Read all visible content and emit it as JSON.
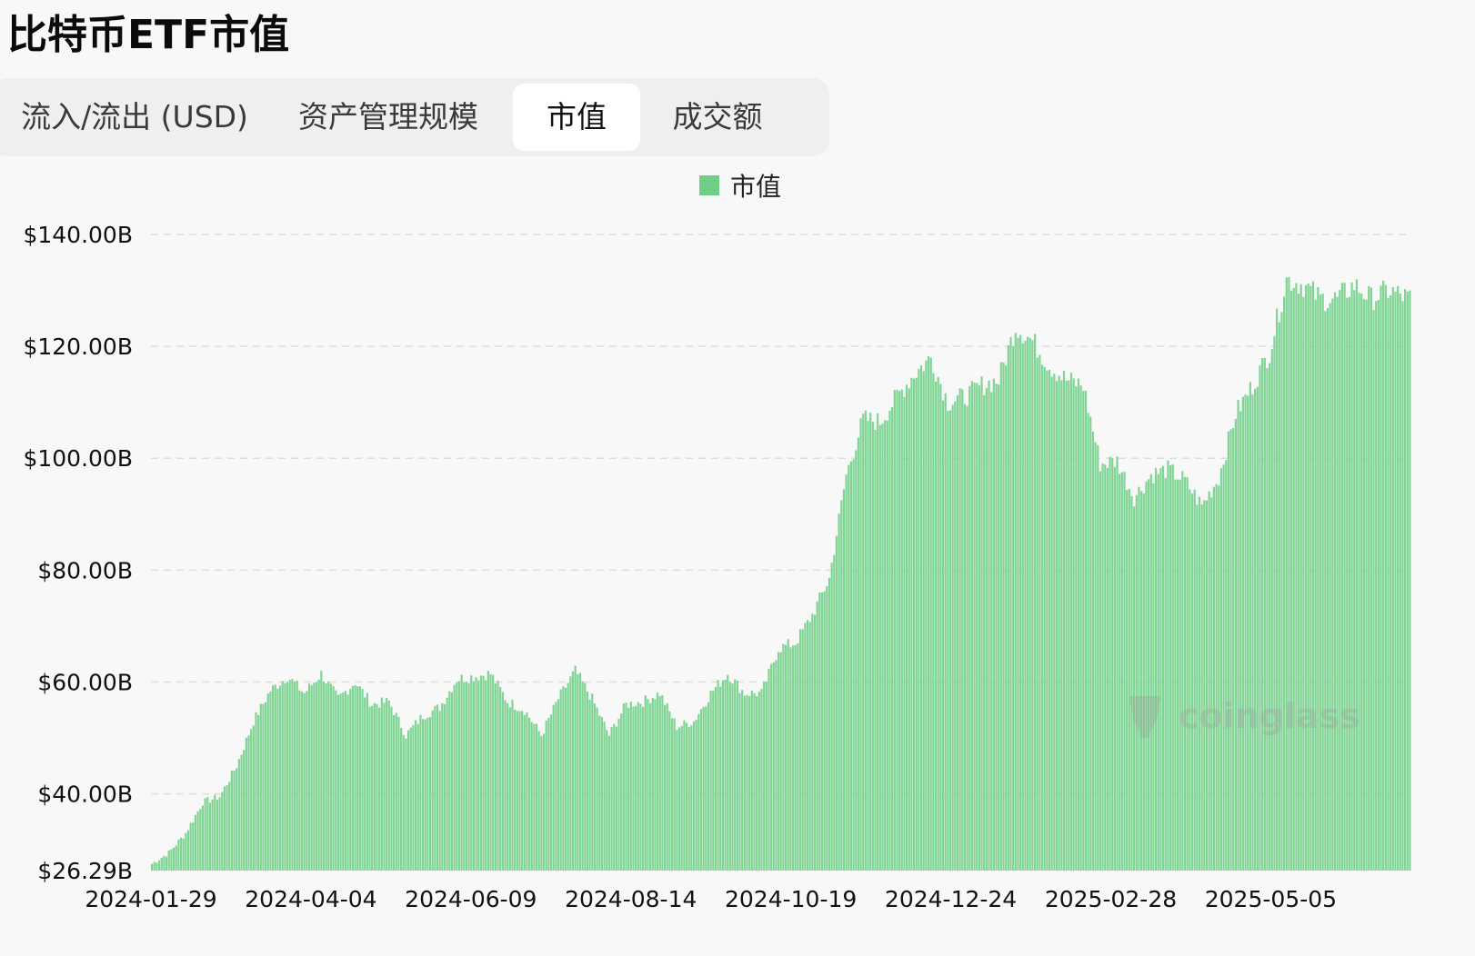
{
  "title": "比特币ETF市值",
  "tabs": [
    {
      "label": "流入/流出 (USD)",
      "active": false
    },
    {
      "label": "资产管理规模",
      "active": false
    },
    {
      "label": "市值",
      "active": true
    },
    {
      "label": "成交额",
      "active": false
    }
  ],
  "watermark": "coinglass",
  "colors": {
    "bar": "#7fd494",
    "legend": "#6fcf86",
    "grid": "#dddddd"
  },
  "chart_data": {
    "type": "bar",
    "title": "",
    "xlabel": "",
    "ylabel": "",
    "ylim": [
      26.29,
      140
    ],
    "y_ticks": [
      "$26.29B",
      "$40.00B",
      "$60.00B",
      "$80.00B",
      "$100.00B",
      "$120.00B",
      "$140.00B"
    ],
    "y_tick_values": [
      26.29,
      40,
      60,
      80,
      100,
      120,
      140
    ],
    "x_tick_labels": [
      "2024-01-29",
      "2024-04-04",
      "2024-06-09",
      "2024-08-14",
      "2024-10-19",
      "2024-12-24",
      "2025-02-28",
      "2025-05-05"
    ],
    "x_start": "2024-01-29",
    "x_end": "2025-07-02",
    "legend": [
      "市值"
    ],
    "grid": true,
    "series": [
      {
        "name": "市值",
        "anchors": [
          [
            "2024-01-29",
            27.5
          ],
          [
            "2024-02-05",
            29.5
          ],
          [
            "2024-02-12",
            33
          ],
          [
            "2024-02-19",
            38.5
          ],
          [
            "2024-02-26",
            39.5
          ],
          [
            "2024-03-04",
            45
          ],
          [
            "2024-03-11",
            53
          ],
          [
            "2024-03-18",
            58.5
          ],
          [
            "2024-03-25",
            61
          ],
          [
            "2024-04-01",
            58
          ],
          [
            "2024-04-08",
            61.5
          ],
          [
            "2024-04-15",
            57
          ],
          [
            "2024-04-22",
            60
          ],
          [
            "2024-04-29",
            56
          ],
          [
            "2024-05-06",
            56.5
          ],
          [
            "2024-05-13",
            50.5
          ],
          [
            "2024-05-20",
            54
          ],
          [
            "2024-05-27",
            55.5
          ],
          [
            "2024-06-03",
            60.5
          ],
          [
            "2024-06-10",
            61
          ],
          [
            "2024-06-17",
            61.5
          ],
          [
            "2024-06-24",
            56.5
          ],
          [
            "2024-07-01",
            55
          ],
          [
            "2024-07-08",
            50.5
          ],
          [
            "2024-07-15",
            57
          ],
          [
            "2024-07-22",
            62
          ],
          [
            "2024-07-29",
            57
          ],
          [
            "2024-08-05",
            50.5
          ],
          [
            "2024-08-12",
            56
          ],
          [
            "2024-08-19",
            56.5
          ],
          [
            "2024-08-26",
            58
          ],
          [
            "2024-09-02",
            52
          ],
          [
            "2024-09-09",
            53
          ],
          [
            "2024-09-16",
            58
          ],
          [
            "2024-09-23",
            61.5
          ],
          [
            "2024-09-30",
            58
          ],
          [
            "2024-10-07",
            58
          ],
          [
            "2024-10-14",
            66
          ],
          [
            "2024-10-21",
            67
          ],
          [
            "2024-10-28",
            72
          ],
          [
            "2024-11-04",
            78.5
          ],
          [
            "2024-11-11",
            97
          ],
          [
            "2024-11-18",
            107
          ],
          [
            "2024-11-25",
            106.5
          ],
          [
            "2024-12-02",
            111
          ],
          [
            "2024-12-09",
            115
          ],
          [
            "2024-12-16",
            118
          ],
          [
            "2024-12-23",
            110
          ],
          [
            "2024-12-30",
            111
          ],
          [
            "2025-01-06",
            113
          ],
          [
            "2025-01-13",
            114
          ],
          [
            "2025-01-20",
            123.5
          ],
          [
            "2025-01-27",
            121
          ],
          [
            "2025-02-03",
            116.5
          ],
          [
            "2025-02-10",
            114
          ],
          [
            "2025-02-17",
            113
          ],
          [
            "2025-02-24",
            99
          ],
          [
            "2025-03-03",
            99.5
          ],
          [
            "2025-03-10",
            93
          ],
          [
            "2025-03-17",
            97
          ],
          [
            "2025-03-24",
            98
          ],
          [
            "2025-03-31",
            96
          ],
          [
            "2025-04-07",
            91.5
          ],
          [
            "2025-04-14",
            96.5
          ],
          [
            "2025-04-21",
            108
          ],
          [
            "2025-04-28",
            113
          ],
          [
            "2025-05-05",
            119
          ],
          [
            "2025-05-12",
            132
          ],
          [
            "2025-05-19",
            131
          ],
          [
            "2025-05-26",
            128.5
          ],
          [
            "2025-06-02",
            128.5
          ],
          [
            "2025-06-09",
            131
          ],
          [
            "2025-06-16",
            128.5
          ],
          [
            "2025-06-23",
            130
          ],
          [
            "2025-07-02",
            128.5
          ]
        ]
      }
    ]
  }
}
